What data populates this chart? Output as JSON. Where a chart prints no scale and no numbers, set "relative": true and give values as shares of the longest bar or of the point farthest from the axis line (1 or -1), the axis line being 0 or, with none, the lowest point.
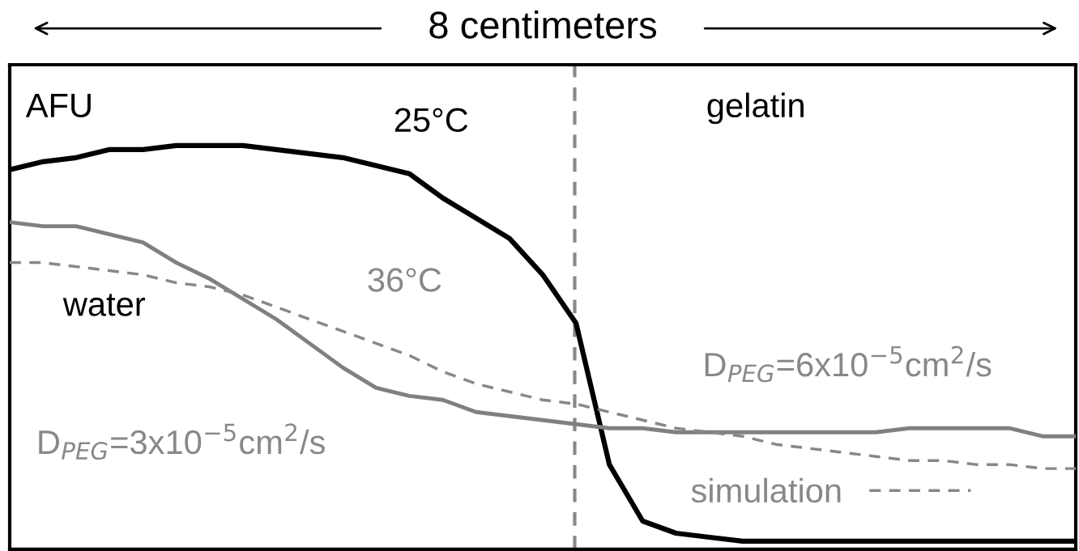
{
  "chart_data": {
    "type": "line",
    "relative": true,
    "xlabel": "8 centimeters",
    "legend": "bottom right",
    "marker": "none",
    "categories": [
      null,
      null,
      null,
      null,
      null,
      null,
      null,
      null,
      null,
      null,
      null,
      null,
      null,
      null,
      null,
      null,
      null,
      null,
      null,
      null,
      null,
      null,
      null,
      null,
      null,
      null,
      null,
      null,
      null,
      null,
      null,
      null,
      null
    ],
    "series": [
      {
        "color": "#000000",
        "line_style": "solid",
        "values": [
          0.94,
          0.96,
          0.97,
          0.99,
          0.99,
          1.0,
          1.0,
          1.0,
          0.99,
          0.98,
          0.97,
          0.95,
          0.93,
          0.87,
          0.82,
          0.77,
          0.68,
          0.56,
          0.21,
          0.07,
          0.04,
          0.03,
          0.02,
          0.02,
          0.02,
          0.02,
          0.02,
          0.02,
          0.02,
          0.02,
          0.02,
          0.02,
          0.02
        ]
      },
      {
        "color": "#808080",
        "line_style": "solid",
        "values": [
          0.81,
          0.8,
          0.8,
          0.78,
          0.76,
          0.71,
          0.67,
          0.62,
          0.57,
          0.51,
          0.45,
          0.4,
          0.38,
          0.37,
          0.34,
          0.33,
          0.32,
          0.31,
          0.3,
          0.3,
          0.29,
          0.29,
          0.29,
          0.29,
          0.29,
          0.29,
          0.29,
          0.3,
          0.3,
          0.3,
          0.3,
          0.28,
          0.28
        ]
      },
      {
        "name": "simulation",
        "color": "#888888",
        "line_style": "dashed",
        "values": [
          0.71,
          0.71,
          0.7,
          0.69,
          0.68,
          0.66,
          0.65,
          0.63,
          0.6,
          0.57,
          0.54,
          0.51,
          0.48,
          0.44,
          0.41,
          0.39,
          0.37,
          0.36,
          0.34,
          0.32,
          0.3,
          0.29,
          0.28,
          0.26,
          0.25,
          0.24,
          0.23,
          0.22,
          0.22,
          0.21,
          0.21,
          0.2,
          0.2
        ]
      }
    ],
    "annotations": [
      "25°C",
      "36°C",
      "AFU",
      "gelatin",
      "water",
      "D$_{PEG}$=3x10$^{−5}$cm$^{2}$/s",
      "D$_{PEG}$=6x10$^{−5}$cm$^{2}$/s"
    ]
  }
}
